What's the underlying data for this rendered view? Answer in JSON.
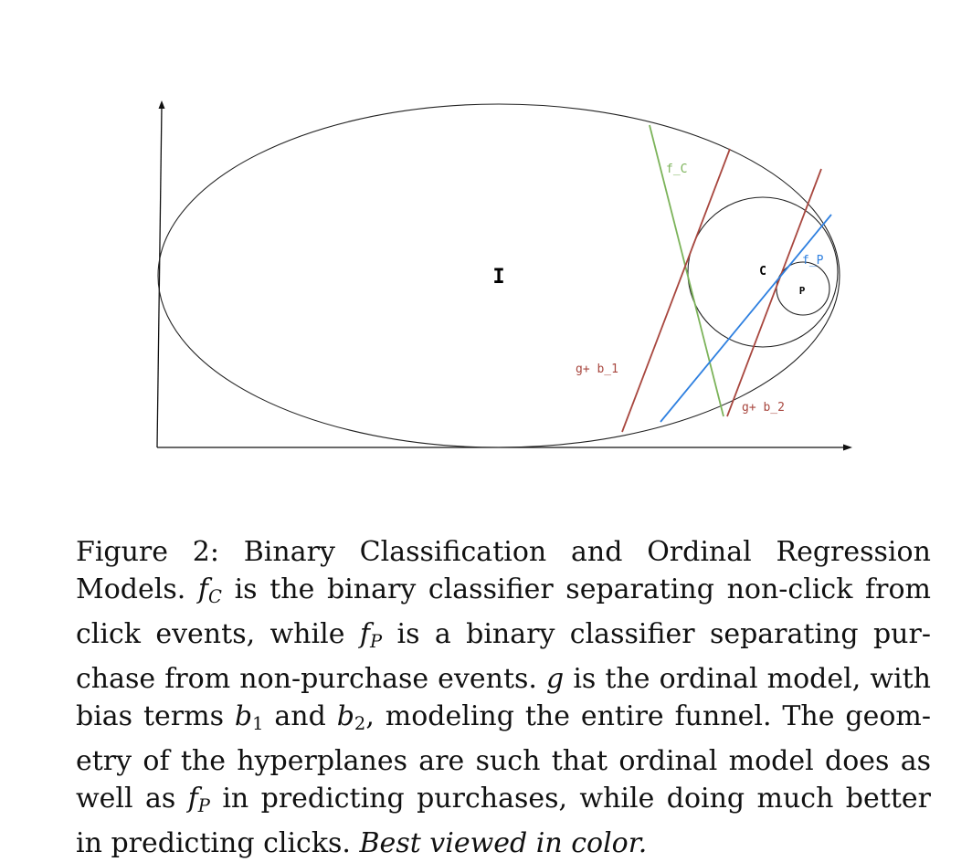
{
  "figure": {
    "set_labels": {
      "impressions": "I",
      "clicks": "C",
      "purchases": "P"
    },
    "line_labels": {
      "f_c": "f_C",
      "f_p": "f_P",
      "g_b1": "g+ b_1",
      "g_b2": "g+ b_2"
    },
    "colors": {
      "f_c": "#7cb35a",
      "f_p": "#2f80e0",
      "g": "#a8473f",
      "ellipse": "#222222",
      "axes": "#111111"
    }
  },
  "caption": {
    "figure_number": "Figure 2:",
    "title": "Binary Classification and Ordinal Regression Models.",
    "lines": [
      [
        "Figure",
        "2:",
        "Binary",
        "Classification",
        "and",
        "Ordinal",
        "Regression"
      ],
      "Models.",
      "is the binary classifier separating non-click from",
      "click events, while",
      "is a binary classifier separating pur-",
      "chase from non-purchase events.",
      "is the ordinal model, with",
      "bias terms",
      "and",
      ", modeling the entire funnel. The geom-",
      "etry of the hyperplanes are such that ordinal model does as",
      "well as",
      "in predicting purchases, while doing much better",
      "in predicting clicks.",
      "Best viewed in color."
    ],
    "symbols": {
      "f": "f",
      "C": "C",
      "P": "P",
      "g": "g",
      "b": "b",
      "one": "1",
      "two": "2"
    }
  }
}
